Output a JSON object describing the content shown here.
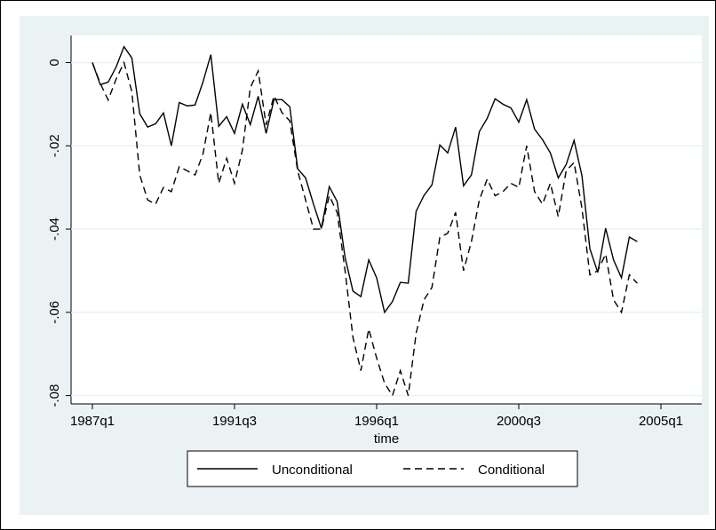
{
  "chart_data": {
    "type": "line",
    "xlabel": "time",
    "x": [
      "1987q1",
      "1987q2",
      "1987q3",
      "1987q4",
      "1988q1",
      "1988q2",
      "1988q3",
      "1988q4",
      "1989q1",
      "1989q2",
      "1989q3",
      "1989q4",
      "1990q1",
      "1990q2",
      "1990q3",
      "1990q4",
      "1991q1",
      "1991q2",
      "1991q3",
      "1991q4",
      "1992q1",
      "1992q2",
      "1992q3",
      "1992q4",
      "1993q1",
      "1993q2",
      "1993q3",
      "1993q4",
      "1994q1",
      "1994q2",
      "1994q3",
      "1994q4",
      "1995q1",
      "1995q2",
      "1995q3",
      "1995q4",
      "1996q1",
      "1996q2",
      "1996q3",
      "1996q4",
      "1997q1",
      "1997q2",
      "1997q3",
      "1997q4",
      "1998q1",
      "1998q2",
      "1998q3",
      "1998q4",
      "1999q1",
      "1999q2",
      "1999q3",
      "1999q4",
      "2000q1",
      "2000q2",
      "2000q3",
      "2000q4",
      "2001q1",
      "2001q2",
      "2001q3",
      "2001q4",
      "2002q1",
      "2002q2",
      "2002q3",
      "2002q4",
      "2003q1",
      "2003q2",
      "2003q3",
      "2003q4",
      "2004q1",
      "2004q2"
    ],
    "series": [
      {
        "name": "Unconditional",
        "color": "#000000",
        "dash": "solid",
        "values": [
          0,
          -0.0053,
          -0.0047,
          -0.0011,
          0.0038,
          0.0011,
          -0.0123,
          -0.0155,
          -0.0147,
          -0.0121,
          -0.02,
          -0.0096,
          -0.0104,
          -0.0102,
          -0.0047,
          0.0019,
          -0.0153,
          -0.013,
          -0.017,
          -0.01,
          -0.0149,
          -0.0081,
          -0.017,
          -0.0089,
          -0.0089,
          -0.0106,
          -0.0255,
          -0.0277,
          -0.034,
          -0.0398,
          -0.0298,
          -0.0334,
          -0.0468,
          -0.0549,
          -0.0562,
          -0.0474,
          -0.0517,
          -0.06,
          -0.0574,
          -0.0528,
          -0.053,
          -0.0357,
          -0.0319,
          -0.0294,
          -0.0198,
          -0.0217,
          -0.0155,
          -0.0296,
          -0.027,
          -0.0166,
          -0.0134,
          -0.0087,
          -0.01,
          -0.0109,
          -0.0143,
          -0.0089,
          -0.016,
          -0.0185,
          -0.0217,
          -0.0277,
          -0.0245,
          -0.0187,
          -0.0272,
          -0.0447,
          -0.0504,
          -0.0398,
          -0.0474,
          -0.0517,
          -0.0419,
          -0.043
        ]
      },
      {
        "name": "Conditional",
        "color": "#000000",
        "dash": "dashed",
        "values": [
          0,
          -0.005,
          -0.009,
          -0.004,
          0,
          -0.007,
          -0.027,
          -0.033,
          -0.034,
          -0.03,
          -0.031,
          -0.025,
          -0.026,
          -0.027,
          -0.022,
          -0.012,
          -0.029,
          -0.023,
          -0.029,
          -0.021,
          -0.006,
          -0.002,
          -0.015,
          -0.008,
          -0.012,
          -0.014,
          -0.026,
          -0.033,
          -0.04,
          -0.04,
          -0.032,
          -0.036,
          -0.05,
          -0.066,
          -0.074,
          -0.064,
          -0.071,
          -0.077,
          -0.08,
          -0.074,
          -0.08,
          -0.065,
          -0.057,
          -0.054,
          -0.042,
          -0.041,
          -0.036,
          -0.05,
          -0.043,
          -0.033,
          -0.028,
          -0.032,
          -0.031,
          -0.029,
          -0.03,
          -0.02,
          -0.031,
          -0.034,
          -0.029,
          -0.037,
          -0.026,
          -0.024,
          -0.035,
          -0.051,
          -0.05,
          -0.046,
          -0.057,
          -0.06,
          -0.051,
          -0.053
        ]
      }
    ],
    "xlim": [
      "1987q1",
      "2005q1"
    ],
    "xticks": [
      "1987q1",
      "1991q3",
      "1996q1",
      "2000q3",
      "2005q1"
    ],
    "ylim": [
      -0.082,
      0.0065
    ],
    "yticks": [
      0,
      {
        "value": -0.02,
        "label": "-.02"
      },
      {
        "value": -0.04,
        "label": "-.04"
      },
      {
        "value": -0.06,
        "label": "-.06"
      },
      {
        "value": -0.08,
        "label": "-.08"
      }
    ],
    "grid": true,
    "legend": "bottom"
  }
}
